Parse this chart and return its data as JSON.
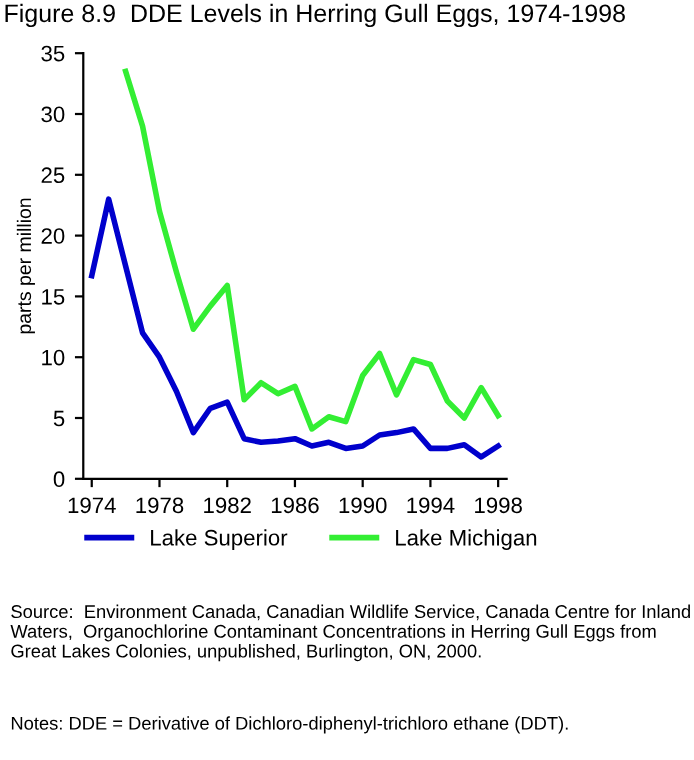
{
  "chart_data": {
    "type": "line",
    "title": "Figure 8.9  DDE Levels in Herring Gull Eggs, 1974-1998",
    "ylabel": "parts per million",
    "x": [
      1974,
      1975,
      1976,
      1977,
      1978,
      1979,
      1980,
      1981,
      1982,
      1983,
      1984,
      1985,
      1986,
      1987,
      1988,
      1989,
      1990,
      1991,
      1992,
      1993,
      1994,
      1995,
      1996,
      1997,
      1998
    ],
    "series": [
      {
        "name": "Lake Superior",
        "color": "#0000cc",
        "values": [
          16.7,
          23,
          17.5,
          12,
          10,
          7.2,
          3.8,
          5.8,
          6.3,
          3.3,
          3.0,
          3.1,
          3.3,
          2.7,
          3.0,
          2.5,
          2.7,
          3.6,
          3.8,
          4.1,
          2.5,
          2.5,
          2.8,
          1.8,
          2.7
        ]
      },
      {
        "name": "Lake Michigan",
        "color": "#33ee33",
        "values": [
          null,
          null,
          33.5,
          29,
          22,
          17,
          12.3,
          14.2,
          15.9,
          6.5,
          7.9,
          7.0,
          7.6,
          4.1,
          5.1,
          4.7,
          8.5,
          10.3,
          6.9,
          9.8,
          9.4,
          6.4,
          5.0,
          7.5,
          5.2
        ]
      }
    ],
    "xlim": [
      1973.5,
      1998.5
    ],
    "xticks": [
      1974,
      1978,
      1982,
      1986,
      1990,
      1994,
      1998
    ],
    "ylim": [
      0,
      35
    ],
    "yticks": [
      0,
      5,
      10,
      15,
      20,
      25,
      30,
      35
    ],
    "grid": false,
    "legend": "bottom",
    "annotations": [
      "Source:  Environment Canada, Canadian Wildlife Service, Canada Centre for Inland Waters,  Organochlorine Contaminant Concentrations in Herring Gull Eggs from Great Lakes Colonies, unpublished, Burlington, ON, 2000.",
      "Notes: DDE = Derivative of Dichloro-diphenyl-trichloro ethane (DDT)."
    ]
  }
}
